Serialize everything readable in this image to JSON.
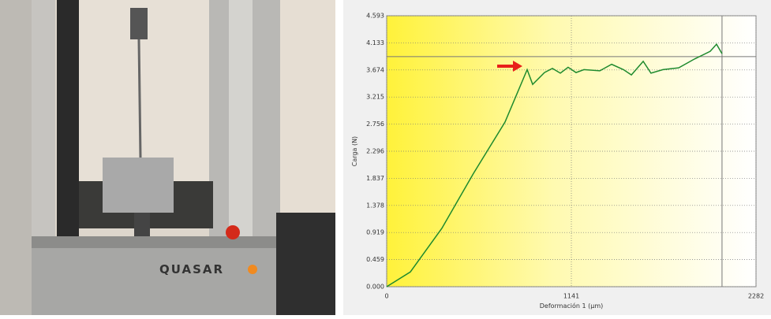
{
  "photo": {
    "label": "QUASAR"
  },
  "chart_data": {
    "type": "line",
    "xlabel": "Deformación 1 (µm)",
    "ylabel": "Carga (N)",
    "xlim": [
      0,
      2282
    ],
    "ylim": [
      0,
      4.593
    ],
    "xticks": [
      0,
      1141,
      2282
    ],
    "yticks": [
      {
        "value": 0,
        "label": "0.000"
      },
      0.459,
      0.919,
      1.378,
      1.837,
      2.296,
      2.756,
      3.215,
      3.674,
      4.133,
      4.593
    ],
    "grid": true,
    "reference_y": 3.9,
    "reference_x": 2072,
    "series": [
      {
        "color": "#1e8a2e",
        "x": [
          0,
          146,
          341,
          536,
          731,
          868,
          902,
          975,
          1024,
          1073,
          1121,
          1170,
          1219,
          1317,
          1390,
          1463,
          1512,
          1585,
          1633,
          1707,
          1804,
          1902,
          1999,
          2038,
          2072
        ],
        "values": [
          0,
          0.25,
          0.99,
          1.92,
          2.79,
          3.68,
          3.43,
          3.63,
          3.7,
          3.62,
          3.72,
          3.63,
          3.68,
          3.66,
          3.77,
          3.68,
          3.59,
          3.82,
          3.62,
          3.68,
          3.71,
          3.86,
          3.99,
          4.11,
          3.95
        ]
      }
    ]
  }
}
